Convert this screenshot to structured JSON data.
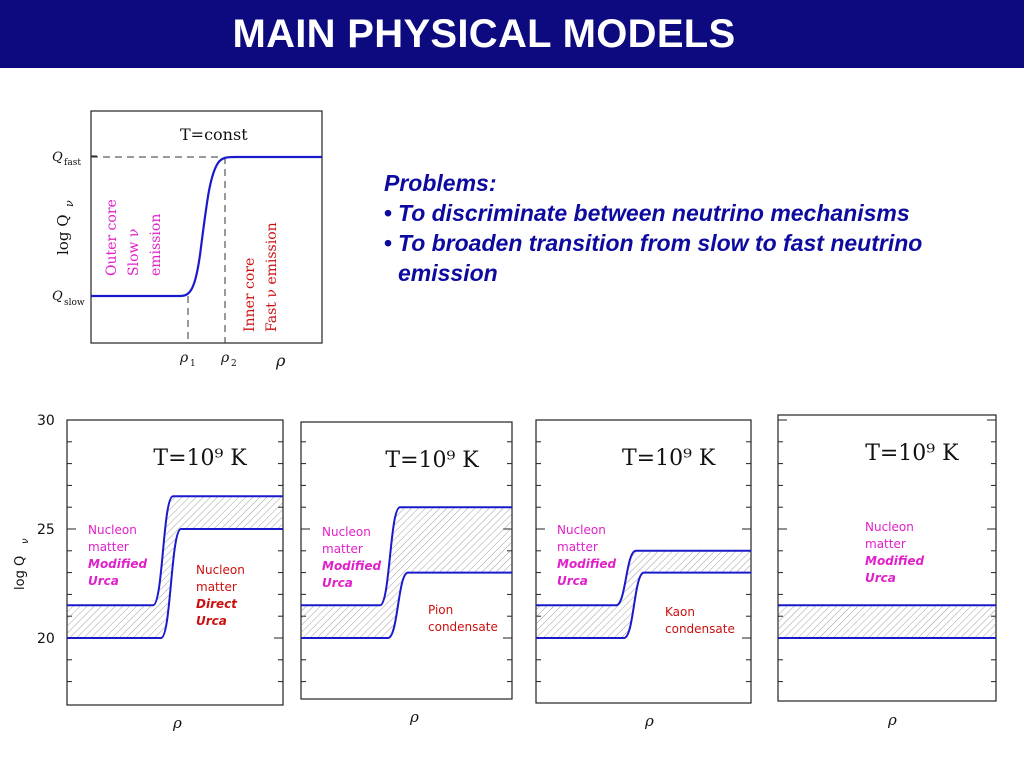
{
  "banner": {
    "title": "MAIN PHYSICAL MODELS"
  },
  "problems": {
    "heading": "Problems:",
    "items": [
      "To discriminate between neutrino mechanisms",
      "To broaden transition from slow to fast neutrino emission"
    ]
  },
  "colors": {
    "banner": "#0d0a80",
    "curve": "#1a1acc",
    "magenta": "#e020c8",
    "red": "#cc1010",
    "problems_text": "#0d0aa0"
  },
  "schematic": {
    "title": "T=const",
    "ylabel": "log Q",
    "ylabel_sub": "ν",
    "q_fast": "Q",
    "q_fast_sub": "fast",
    "q_slow": "Q",
    "q_slow_sub": "slow",
    "rho1": "ρ",
    "rho1_sub": "1",
    "rho2": "ρ",
    "rho2_sub": "2",
    "xlabel": "ρ",
    "outer_core": [
      "Outer core",
      "Slow ν",
      "emission"
    ],
    "inner_core": [
      "Inner core",
      "Fast ν emission"
    ]
  },
  "chart_data": [
    {
      "type": "line",
      "panel": 1,
      "title": "T=10⁹ K",
      "xlabel": "ρ",
      "ylabel": "log Q",
      "ylabel_sub": "ν",
      "ylim": [
        17,
        30
      ],
      "yticks": [
        "30",
        "25",
        "20"
      ],
      "band_low": [
        20.0,
        25.0
      ],
      "band_high": [
        21.5,
        26.5
      ],
      "labels_left": [
        "Nucleon",
        "matter",
        "Modified",
        "Urca"
      ],
      "labels_right": [
        "Nucleon",
        "matter",
        "Direct",
        "Urca"
      ]
    },
    {
      "type": "line",
      "panel": 2,
      "title": "T=10⁹ K",
      "xlabel": "ρ",
      "ylim": [
        17,
        30
      ],
      "band_low": [
        20.0,
        23.0
      ],
      "band_high": [
        21.5,
        26.0
      ],
      "labels_left": [
        "Nucleon",
        "matter",
        "Modified",
        "Urca"
      ],
      "labels_right": [
        "Pion",
        "condensate"
      ]
    },
    {
      "type": "line",
      "panel": 3,
      "title": "T=10⁹ K",
      "xlabel": "ρ",
      "ylim": [
        17,
        30
      ],
      "band_low": [
        20.0,
        23.0
      ],
      "band_high": [
        21.5,
        24.0
      ],
      "labels_left": [
        "Nucleon",
        "matter",
        "Modified",
        "Urca"
      ],
      "labels_right": [
        "Kaon",
        "condensate"
      ]
    },
    {
      "type": "line",
      "panel": 4,
      "title": "T=10⁹ K",
      "xlabel": "ρ",
      "ylim": [
        17,
        30
      ],
      "band_low": [
        20.0,
        20.0
      ],
      "band_high": [
        21.5,
        21.5
      ],
      "labels_left": [
        "Nucleon",
        "matter",
        "Modified",
        "Urca"
      ],
      "labels_right": []
    }
  ]
}
